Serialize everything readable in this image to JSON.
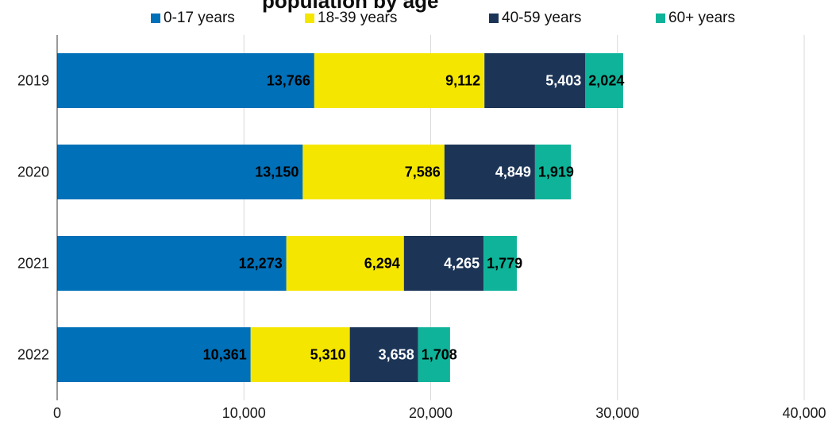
{
  "chart_data": {
    "type": "bar",
    "orientation": "horizontal",
    "stacked": true,
    "title": "",
    "xlabel": "",
    "ylabel": "",
    "categories": [
      "2019",
      "2020",
      "2021",
      "2022"
    ],
    "series": [
      {
        "name": "0-17 years",
        "color": "#0070b8",
        "values": [
          13766,
          13150,
          12273,
          10361
        ],
        "labels": [
          "13,766",
          "13,150",
          "12,273",
          "10,361"
        ]
      },
      {
        "name": "18-39 years",
        "color": "#f5e600",
        "values": [
          9112,
          7586,
          6294,
          5310
        ],
        "labels": [
          "9,112",
          "7,586",
          "6,294",
          "5,310"
        ]
      },
      {
        "name": "40-59 years",
        "color": "#1c3557",
        "values": [
          5403,
          4849,
          4265,
          3658
        ],
        "labels": [
          "5,403",
          "4,849",
          "4,265",
          "3,658"
        ]
      },
      {
        "name": "60+ years",
        "color": "#0fb399",
        "values": [
          2024,
          1919,
          1779,
          1708
        ],
        "labels": [
          "2,024",
          "1,919",
          "1,779",
          "1,708"
        ]
      }
    ],
    "xlim": [
      0,
      40000
    ],
    "xticks": [
      0,
      10000,
      20000,
      30000,
      40000
    ],
    "xtick_labels": [
      "0",
      "10,000",
      "20,000",
      "30,000",
      "40,000"
    ],
    "grid": true,
    "legend_position": "top"
  },
  "partial_title": "population by age"
}
